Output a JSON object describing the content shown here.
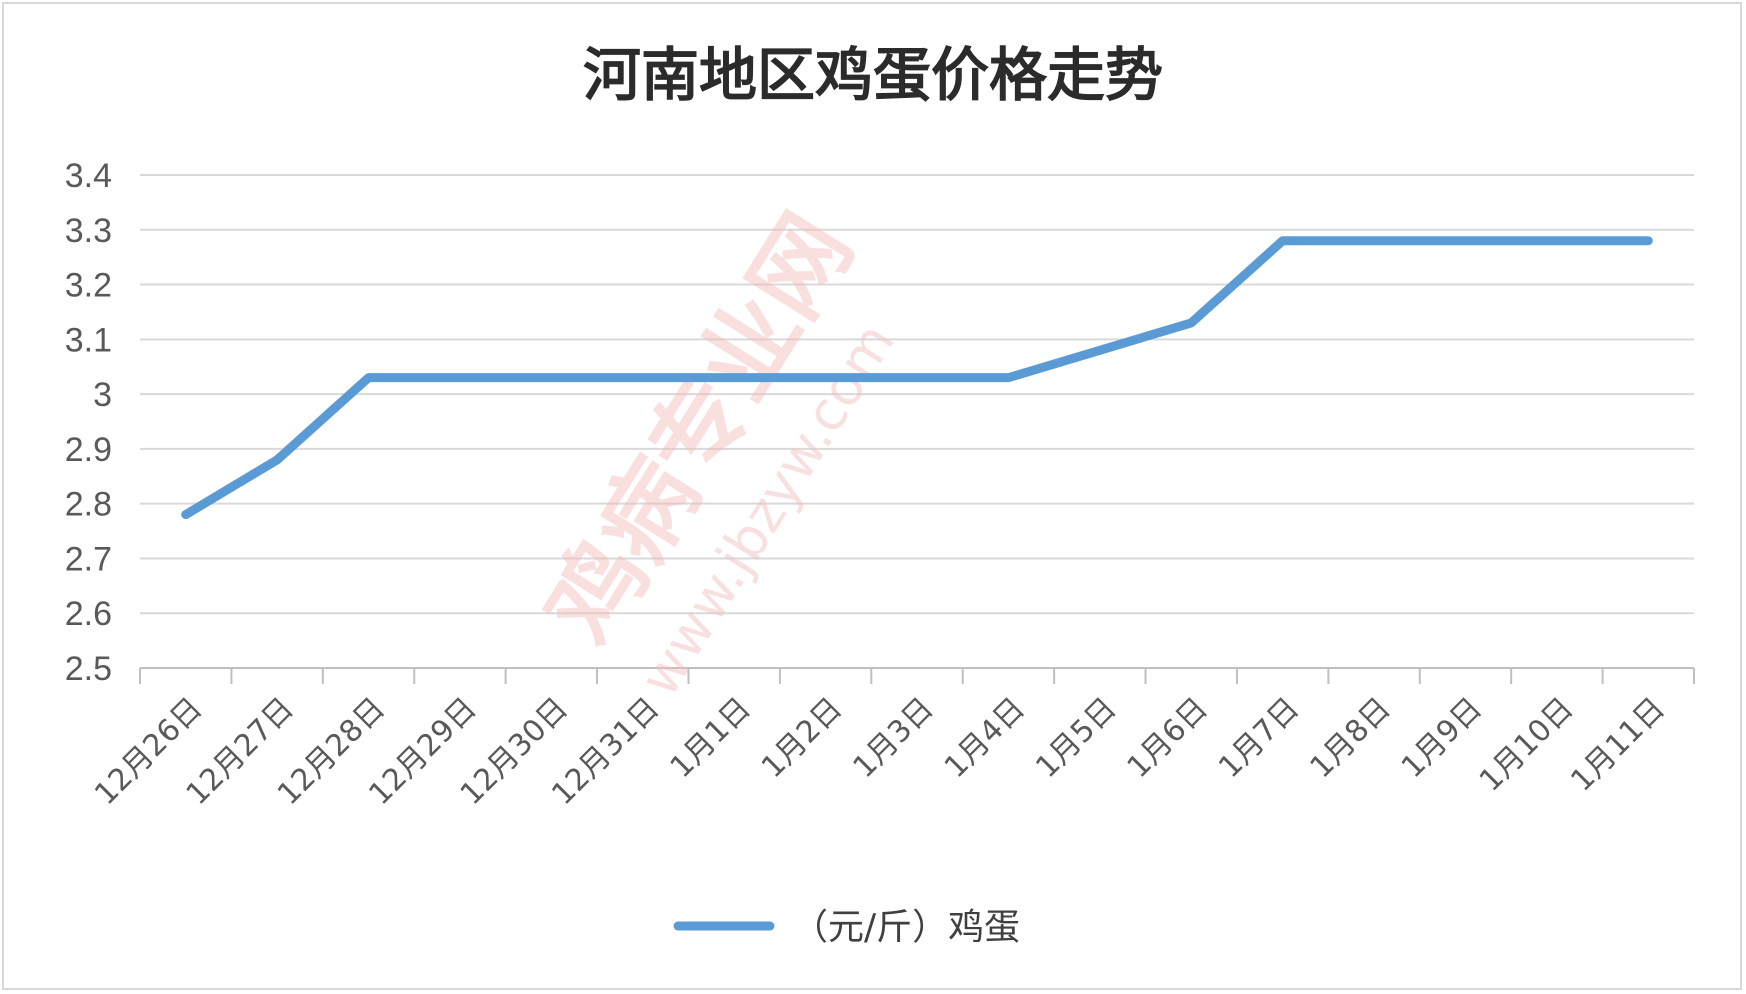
{
  "chart_data": {
    "type": "line",
    "title": "河南地区鸡蛋价格走势",
    "categories": [
      "12月26日",
      "12月27日",
      "12月28日",
      "12月29日",
      "12月30日",
      "12月31日",
      "1月1日",
      "1月2日",
      "1月3日",
      "1月4日",
      "1月5日",
      "1月6日",
      "1月7日",
      "1月8日",
      "1月9日",
      "1月10日",
      "1月11日"
    ],
    "series": [
      {
        "name": "（元/斤）鸡蛋",
        "values": [
          2.78,
          2.88,
          3.03,
          3.03,
          3.03,
          3.03,
          3.03,
          3.03,
          3.03,
          3.03,
          3.08,
          3.13,
          3.28,
          3.28,
          3.28,
          3.28,
          3.28
        ],
        "color": "#5b9bd5"
      }
    ],
    "ylim": [
      2.5,
      3.4
    ],
    "yticks": [
      "2.5",
      "2.6",
      "2.7",
      "2.8",
      "2.9",
      "3",
      "3.1",
      "3.2",
      "3.3",
      "3.4"
    ],
    "grid": true,
    "legend_position": "bottom"
  },
  "watermark": {
    "text": "鸡病专业网",
    "url": "www.jbzyw.com"
  }
}
